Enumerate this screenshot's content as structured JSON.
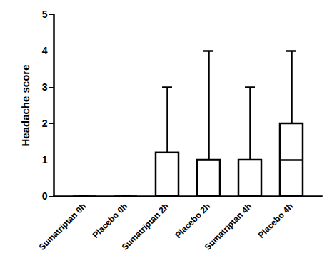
{
  "chart_data": {
    "type": "box",
    "ylabel": "Headache score",
    "categories": [
      "Sumatriptan 0h",
      "Placebo 0h",
      "Sumatriptan 2h",
      "Placebo 2h",
      "Sumatriptan 4h",
      "Placebo 4h"
    ],
    "min": [
      0,
      0,
      0,
      0,
      0,
      0
    ],
    "q1": [
      0,
      0,
      0,
      0,
      0,
      0
    ],
    "median": [
      0,
      0,
      0,
      1,
      0,
      1
    ],
    "q3": [
      0,
      0,
      1.2,
      1,
      1,
      2
    ],
    "max": [
      0,
      0,
      3,
      4,
      3,
      4
    ],
    "color": "#000000",
    "ylim": [
      0,
      5
    ],
    "yticks": [
      0,
      1,
      2,
      3,
      4,
      5
    ]
  }
}
